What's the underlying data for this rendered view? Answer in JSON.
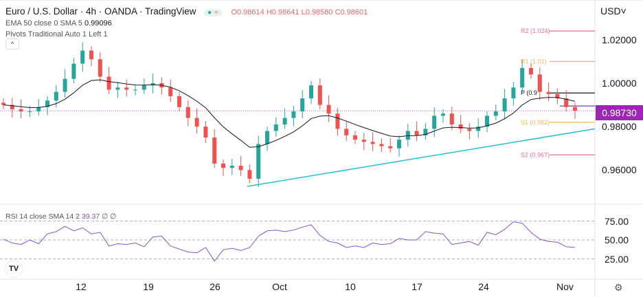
{
  "header": {
    "title": "Euro / U.S. Dollar · 4h · OANDA · TradingView",
    "open": "O0.98614",
    "high": "H0.98641",
    "low": "L0.98580",
    "close": "C0.98601",
    "indicator_ema": "EMA 50 close 0 SMA 5",
    "ema_value": "0.99096",
    "indicator_pivots": "Pivots Traditional Auto 1 Left 1",
    "collapse": "^"
  },
  "price_axis": {
    "currency": "USD",
    "ticks": [
      "1.02000",
      "1.00000",
      "0.98000",
      "0.96000"
    ],
    "current_price": "0.98730",
    "current_price_color": "#9c27b0"
  },
  "rsi": {
    "label": "RSI 14 close SMA 14 2",
    "value": "39.37",
    "extra": "∅ ∅",
    "ticks": [
      "75.00",
      "50.00",
      "25.00"
    ]
  },
  "time_axis": {
    "labels": [
      "12",
      "19",
      "26",
      "Oct",
      "10",
      "17",
      "24",
      "Nov"
    ]
  },
  "pivots": [
    {
      "label": "R2 (1.024)",
      "value": 1.024,
      "color": "#e0709a"
    },
    {
      "label": "R1 (1.01)",
      "value": 1.01,
      "color": "#f0b868"
    },
    {
      "label": "P (0.9",
      "value": 0.9955,
      "color": "#131722"
    },
    {
      "label": "S1 (0.982)",
      "value": 0.982,
      "color": "#f0b868"
    },
    {
      "label": "S2 (0.967)",
      "value": 0.967,
      "color": "#e0709a"
    }
  ],
  "chart_data": {
    "type": "candlestick",
    "price_ylim": [
      0.945,
      1.03
    ],
    "rsi_ylim": [
      0,
      100
    ],
    "closes": [
      0.99,
      0.988,
      0.987,
      0.987,
      0.989,
      0.992,
      0.996,
      1.002,
      1.009,
      1.015,
      1.011,
      1.003,
      0.997,
      0.998,
      0.997,
      0.997,
      0.999,
      1.0,
      0.998,
      0.994,
      0.989,
      0.984,
      0.98,
      0.975,
      0.963,
      0.961,
      0.962,
      0.96,
      0.956,
      0.972,
      0.978,
      0.981,
      0.984,
      0.987,
      0.993,
      0.999,
      0.99,
      0.986,
      0.979,
      0.976,
      0.974,
      0.973,
      0.972,
      0.971,
      0.97,
      0.974,
      0.978,
      0.976,
      0.979,
      0.985,
      0.986,
      0.981,
      0.979,
      0.978,
      0.98,
      0.985,
      0.987,
      0.993,
      0.998,
      1.007,
      1.004,
      0.996,
      0.995,
      0.993,
      0.989,
      0.9873
    ],
    "rsi_values": [
      51,
      46,
      44,
      50,
      45,
      58,
      61,
      68,
      62,
      66,
      58,
      60,
      42,
      45,
      44,
      46,
      41,
      54,
      55,
      42,
      38,
      34,
      33,
      40,
      22,
      37,
      39,
      36,
      40,
      55,
      62,
      63,
      61,
      63,
      67,
      70,
      56,
      48,
      46,
      40,
      42,
      40,
      46,
      44,
      45,
      52,
      50,
      50,
      61,
      59,
      58,
      44,
      46,
      48,
      43,
      60,
      57,
      64,
      74,
      72,
      60,
      51,
      48,
      47,
      41,
      40
    ],
    "trendline": [
      0.9525,
      0.979
    ],
    "colors": {
      "up": "#26a69a",
      "down": "#ef5350",
      "ema": "#131722",
      "rsi": "#7e57c2",
      "trend": "#22c0d0"
    }
  }
}
